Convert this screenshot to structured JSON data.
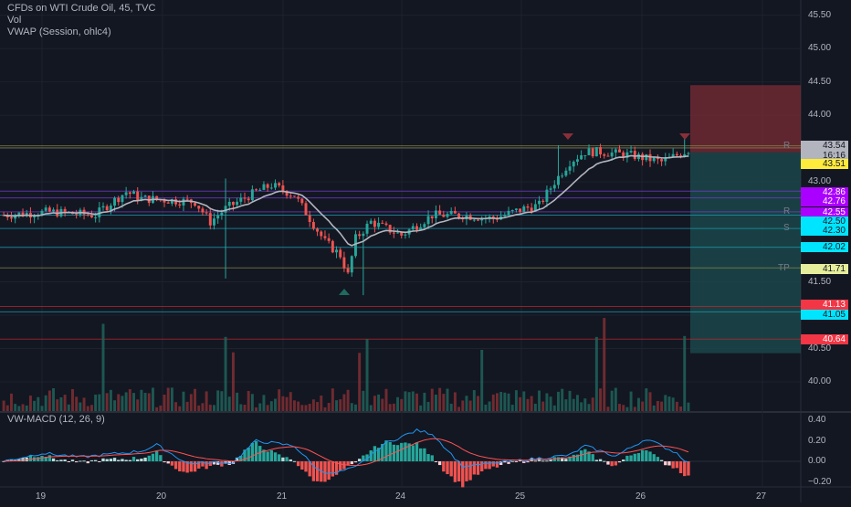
{
  "header": {
    "symbol_line": "CFDs on WTI Crude Oil, 45, TVC",
    "volume_label": "Vol",
    "vwap_label": "VWAP (Session, ohlc4)"
  },
  "macd": {
    "label": "VW-MACD (12, 26, 9)"
  },
  "price_axis": [
    "45.50",
    "45.00",
    "44.50",
    "44.00",
    "43.00",
    "41.50",
    "40.50",
    "40.00"
  ],
  "macd_axis": [
    "0.40",
    "0.20",
    "0.00",
    "−0.20"
  ],
  "time_axis": [
    "19",
    "20",
    "21",
    "24",
    "25",
    "26",
    "27"
  ],
  "price_tags": [
    {
      "text": "43.54",
      "bg": "#b2b5be",
      "fg": "#131722"
    },
    {
      "text": "16:16",
      "bg": "#b2b5be",
      "fg": "#131722"
    },
    {
      "text": "43.51",
      "bg": "#ffeb3b",
      "fg": "#131722"
    },
    {
      "text": "42.86",
      "bg": "#aa00ff",
      "fg": "#ffffff"
    },
    {
      "text": "42.76",
      "bg": "#aa00ff",
      "fg": "#ffffff"
    },
    {
      "text": "42.55",
      "bg": "#aa00ff",
      "fg": "#ffffff"
    },
    {
      "text": "42.50",
      "bg": "#00e5ff",
      "fg": "#131722"
    },
    {
      "text": "42.30",
      "bg": "#00e5ff",
      "fg": "#131722"
    },
    {
      "text": "42.02",
      "bg": "#00e5ff",
      "fg": "#131722"
    },
    {
      "text": "41.71",
      "bg": "#e6ee9c",
      "fg": "#131722"
    },
    {
      "text": "41.13",
      "bg": "#f23645",
      "fg": "#ffffff"
    },
    {
      "text": "41.05",
      "bg": "#00e5ff",
      "fg": "#131722"
    },
    {
      "text": "40.64",
      "bg": "#f23645",
      "fg": "#ffffff"
    }
  ],
  "zone_labels": [
    "R",
    "R",
    "S",
    "TP"
  ],
  "colors": {
    "up": "#26a69a",
    "down": "#ef5350",
    "vwap": "#b2b5be",
    "macd_line": "#2196f3",
    "signal_line": "#ff5252",
    "position_stop": "#7b2c35",
    "position_target": "#1c4a4e"
  },
  "chart_data": {
    "type": "candlestick",
    "title": "CFDs on WTI Crude Oil, 45, TVC",
    "x_categories": [
      "19",
      "20",
      "21",
      "24",
      "25",
      "26",
      "27"
    ],
    "ylim": [
      39.65,
      45.55
    ],
    "macd_ylim": [
      -0.25,
      0.42
    ],
    "levels": [
      {
        "value": 43.54,
        "label": "R"
      },
      {
        "value": 43.51
      },
      {
        "value": 42.86
      },
      {
        "value": 42.76
      },
      {
        "value": 42.55,
        "label": "R"
      },
      {
        "value": 42.5
      },
      {
        "value": 42.3,
        "label": "S"
      },
      {
        "value": 42.02
      },
      {
        "value": 41.71,
        "label": "TP"
      },
      {
        "value": 41.13
      },
      {
        "value": 41.05
      },
      {
        "value": 40.64
      }
    ],
    "position": {
      "entry": 43.44,
      "stop": 44.45,
      "target": 40.43
    },
    "close_keypoints": [
      [
        0,
        42.5
      ],
      [
        0.06,
        42.55
      ],
      [
        0.12,
        42.5
      ],
      [
        0.13,
        42.6
      ],
      [
        0.16,
        42.85
      ],
      [
        0.18,
        42.75
      ],
      [
        0.25,
        42.7
      ],
      [
        0.27,
        42.4
      ],
      [
        0.29,
        42.6
      ],
      [
        0.33,
        42.85
      ],
      [
        0.35,
        42.95
      ],
      [
        0.38,
        42.8
      ],
      [
        0.4,
        42.45
      ],
      [
        0.42,
        42.1
      ],
      [
        0.44,
        41.9
      ],
      [
        0.45,
        41.6
      ],
      [
        0.46,
        42.15
      ],
      [
        0.48,
        42.4
      ],
      [
        0.52,
        42.2
      ],
      [
        0.56,
        42.5
      ],
      [
        0.6,
        42.5
      ],
      [
        0.64,
        42.45
      ],
      [
        0.68,
        42.6
      ],
      [
        0.7,
        42.65
      ],
      [
        0.72,
        43.0
      ],
      [
        0.74,
        43.3
      ],
      [
        0.76,
        43.45
      ],
      [
        0.78,
        43.45
      ],
      [
        0.82,
        43.4
      ],
      [
        0.86,
        43.3
      ],
      [
        0.88,
        43.4
      ],
      [
        0.9,
        43.5
      ]
    ],
    "macd_keypoints": [
      [
        0,
        0.0
      ],
      [
        0.05,
        0.08
      ],
      [
        0.1,
        0.04
      ],
      [
        0.18,
        0.1
      ],
      [
        0.2,
        0.16
      ],
      [
        0.24,
        -0.02
      ],
      [
        0.3,
        -0.01
      ],
      [
        0.33,
        0.2
      ],
      [
        0.38,
        0.15
      ],
      [
        0.41,
        -0.08
      ],
      [
        0.43,
        -0.12
      ],
      [
        0.46,
        -0.06
      ],
      [
        0.5,
        0.18
      ],
      [
        0.54,
        0.3
      ],
      [
        0.56,
        0.27
      ],
      [
        0.6,
        -0.05
      ],
      [
        0.64,
        -0.02
      ],
      [
        0.7,
        0.03
      ],
      [
        0.74,
        0.06
      ],
      [
        0.76,
        0.15
      ],
      [
        0.8,
        0.05
      ],
      [
        0.84,
        0.22
      ],
      [
        0.88,
        0.08
      ],
      [
        0.9,
        -0.05
      ]
    ]
  }
}
